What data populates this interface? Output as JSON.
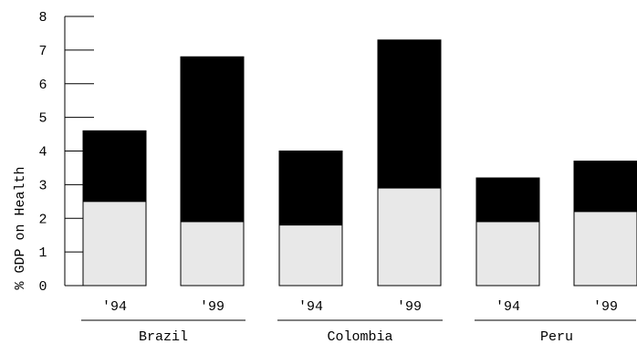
{
  "chart_data": {
    "type": "bar",
    "stacked": true,
    "ylabel": "% GDP on Health",
    "xlabel": "",
    "ylim": [
      0,
      8
    ],
    "yticks": [
      "0",
      "1",
      "2",
      "3",
      "4",
      "5",
      "6",
      "7",
      "8"
    ],
    "groups": [
      {
        "name": "Brazil",
        "bars": [
          {
            "label": "'94",
            "bottom": 2.5,
            "total": 4.6
          },
          {
            "label": "'99",
            "bottom": 1.9,
            "total": 6.8
          }
        ]
      },
      {
        "name": "Colombia",
        "bars": [
          {
            "label": "'94",
            "bottom": 1.8,
            "total": 4.0
          },
          {
            "label": "'99",
            "bottom": 2.9,
            "total": 7.3
          }
        ]
      },
      {
        "name": "Peru",
        "bars": [
          {
            "label": "'94",
            "bottom": 1.9,
            "total": 3.2
          },
          {
            "label": "'99",
            "bottom": 2.2,
            "total": 3.7
          }
        ]
      }
    ],
    "colors": {
      "bottom": "#e8e8e8",
      "top": "#000000",
      "outline": "#000000"
    },
    "grid": false,
    "legend": "none"
  }
}
